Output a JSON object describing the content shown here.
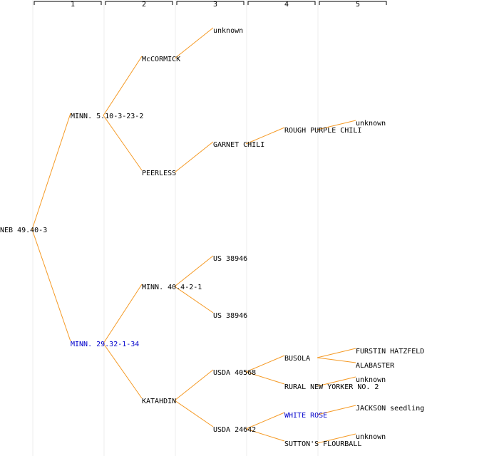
{
  "colors": {
    "edge": "#f59a25",
    "text": "#000000",
    "highlight": "#0000cc",
    "column_guide": "#eeeeee"
  },
  "generations": [
    "1",
    "2",
    "3",
    "4",
    "5"
  ],
  "nodes": [
    {
      "id": "n0",
      "label": "NEB 49.40-3",
      "gen": 0,
      "highlighted": false
    },
    {
      "id": "n1",
      "label": "MINN. 5.10-3-23-2",
      "gen": 1,
      "highlighted": false,
      "parent": "n0"
    },
    {
      "id": "n2",
      "label": "MINN. 29.32-1-34",
      "gen": 1,
      "highlighted": true,
      "parent": "n0"
    },
    {
      "id": "n3",
      "label": "McCORMICK",
      "gen": 2,
      "highlighted": false,
      "parent": "n1"
    },
    {
      "id": "n4",
      "label": "PEERLESS",
      "gen": 2,
      "highlighted": false,
      "parent": "n1"
    },
    {
      "id": "n5",
      "label": "MINN. 40.4-2-1",
      "gen": 2,
      "highlighted": false,
      "parent": "n2"
    },
    {
      "id": "n6",
      "label": "KATAHDIN",
      "gen": 2,
      "highlighted": false,
      "parent": "n2"
    },
    {
      "id": "n7",
      "label": "unknown",
      "gen": 3,
      "highlighted": false,
      "parent": "n3"
    },
    {
      "id": "n8",
      "label": "GARNET CHILI",
      "gen": 3,
      "highlighted": false,
      "parent": "n4"
    },
    {
      "id": "n9",
      "label": "US 38946",
      "gen": 3,
      "highlighted": false,
      "parent": "n5"
    },
    {
      "id": "n10",
      "label": "US 38946",
      "gen": 3,
      "highlighted": false,
      "parent": "n5"
    },
    {
      "id": "n11",
      "label": "USDA 40568",
      "gen": 3,
      "highlighted": false,
      "parent": "n6"
    },
    {
      "id": "n12",
      "label": "USDA 24642",
      "gen": 3,
      "highlighted": false,
      "parent": "n6"
    },
    {
      "id": "n13",
      "label": "ROUGH PURPLE CHILI",
      "gen": 4,
      "highlighted": false,
      "parent": "n8"
    },
    {
      "id": "n14",
      "label": "BUSOLA",
      "gen": 4,
      "highlighted": false,
      "parent": "n11"
    },
    {
      "id": "n15",
      "label": "RURAL NEW YORKER NO. 2",
      "gen": 4,
      "highlighted": false,
      "parent": "n11"
    },
    {
      "id": "n16",
      "label": "WHITE ROSE",
      "gen": 4,
      "highlighted": true,
      "parent": "n12"
    },
    {
      "id": "n17",
      "label": "SUTTON'S FLOURBALL",
      "gen": 4,
      "highlighted": false,
      "parent": "n12"
    },
    {
      "id": "n18",
      "label": "unknown",
      "gen": 5,
      "highlighted": false,
      "parent": "n13"
    },
    {
      "id": "n19",
      "label": "FURSTIN HATZFELD",
      "gen": 5,
      "highlighted": false,
      "parent": "n14"
    },
    {
      "id": "n20",
      "label": "ALABASTER",
      "gen": 5,
      "highlighted": false,
      "parent": "n14"
    },
    {
      "id": "n21",
      "label": "unknown",
      "gen": 5,
      "highlighted": false,
      "parent": "n15"
    },
    {
      "id": "n22",
      "label": "JACKSON seedling",
      "gen": 5,
      "highlighted": false,
      "parent": "n16"
    },
    {
      "id": "n23",
      "label": "unknown",
      "gen": 5,
      "highlighted": false,
      "parent": "n17"
    }
  ]
}
